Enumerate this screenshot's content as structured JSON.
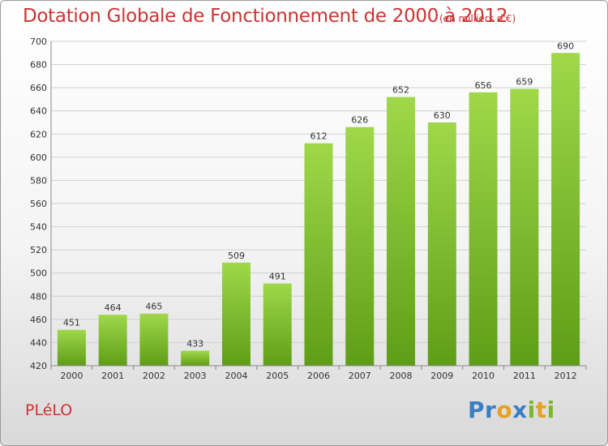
{
  "chart_data": {
    "type": "bar",
    "title": "Dotation Globale de Fonctionnement de 2000 à 2012",
    "unit": "(en milliers d'€)",
    "categories": [
      "2000",
      "2001",
      "2002",
      "2003",
      "2004",
      "2005",
      "2006",
      "2007",
      "2008",
      "2009",
      "2010",
      "2011",
      "2012"
    ],
    "values": [
      451,
      464,
      465,
      433,
      509,
      491,
      612,
      626,
      652,
      630,
      656,
      659,
      690
    ],
    "ylim": [
      420,
      700
    ],
    "yticks": [
      420,
      440,
      460,
      480,
      500,
      520,
      540,
      560,
      580,
      600,
      620,
      640,
      660,
      680,
      700
    ],
    "grid": true,
    "bar_color": "#7bbd2e"
  },
  "commune": "PLéLO",
  "logo": {
    "letters": [
      {
        "ch": "P",
        "color": "#3a7fc4"
      },
      {
        "ch": "r",
        "color": "#3a7fc4"
      },
      {
        "ch": "o",
        "color": "#e8a020"
      },
      {
        "ch": "x",
        "color": "#3a7fc4"
      },
      {
        "ch": "i",
        "color": "#79b829"
      },
      {
        "ch": "t",
        "color": "#e8a020"
      },
      {
        "ch": "i",
        "color": "#79b829"
      }
    ]
  }
}
